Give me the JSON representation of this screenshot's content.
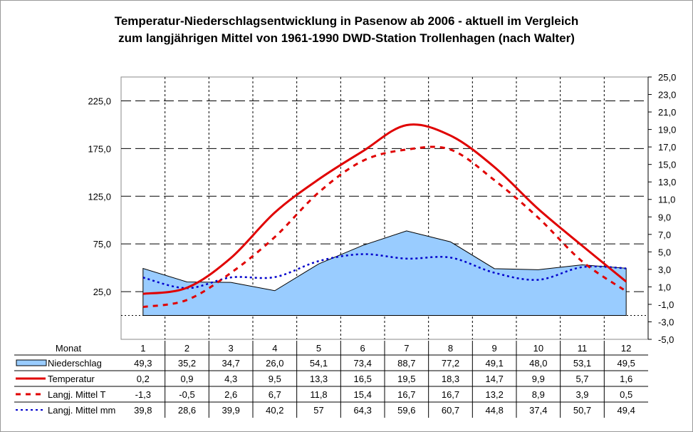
{
  "chart_data": {
    "type": "line",
    "title_line1": "Temperatur-Niederschlagsentwicklung in Pasenow ab 2006 - aktuell  im Vergleich",
    "title_line2": "zum langjährigen Mittel von 1961-1990 DWD-Station Trollenhagen (nach Walter)",
    "x_header": "Monat",
    "categories": [
      "1",
      "2",
      "3",
      "4",
      "5",
      "6",
      "7",
      "8",
      "9",
      "10",
      "11",
      "12"
    ],
    "y_left": {
      "range": [
        -25,
        250
      ],
      "ticks": [
        "25,0",
        "75,0",
        "125,0",
        "175,0",
        "225,0"
      ],
      "tick_values": [
        25,
        75,
        125,
        175,
        225
      ]
    },
    "y_right": {
      "range": [
        -5,
        25
      ],
      "ticks": [
        "25,0",
        "23,0",
        "21,0",
        "19,0",
        "17,0",
        "15,0",
        "13,0",
        "11,0",
        "9,0",
        "7,0",
        "5,0",
        "3,0",
        "1,0",
        "-1,0",
        "-3,0",
        "-5,0"
      ],
      "tick_values": [
        25,
        23,
        21,
        19,
        17,
        15,
        13,
        11,
        9,
        7,
        5,
        3,
        1,
        -1,
        -3,
        -5
      ]
    },
    "series": [
      {
        "name": "Niederschlag",
        "axis": "left",
        "style": "area",
        "color": "#99ccff",
        "values": [
          49.3,
          35.2,
          34.7,
          26.0,
          54.1,
          73.4,
          88.7,
          77.2,
          49.1,
          48.0,
          53.1,
          49.5
        ],
        "labels": [
          "49,3",
          "35,2",
          "34,7",
          "26,0",
          "54,1",
          "73,4",
          "88,7",
          "77,2",
          "49,1",
          "48,0",
          "53,1",
          "49,5"
        ]
      },
      {
        "name": "Temperatur",
        "axis": "right",
        "style": "solid",
        "color": "#e00000",
        "values": [
          0.2,
          0.9,
          4.3,
          9.5,
          13.3,
          16.5,
          19.5,
          18.3,
          14.7,
          9.9,
          5.7,
          1.6
        ],
        "labels": [
          "0,2",
          "0,9",
          "4,3",
          "9,5",
          "13,3",
          "16,5",
          "19,5",
          "18,3",
          "14,7",
          "9,9",
          "5,7",
          "1,6"
        ]
      },
      {
        "name": "Langj. Mittel T",
        "axis": "right",
        "style": "dashed",
        "color": "#e00000",
        "values": [
          -1.3,
          -0.5,
          2.6,
          6.7,
          11.8,
          15.4,
          16.7,
          16.7,
          13.2,
          8.9,
          3.9,
          0.5
        ],
        "labels": [
          "-1,3",
          "-0,5",
          "2,6",
          "6,7",
          "11,8",
          "15,4",
          "16,7",
          "16,7",
          "13,2",
          "8,9",
          "3,9",
          "0,5"
        ]
      },
      {
        "name": "Langj. Mittel mm",
        "axis": "left",
        "style": "dotted",
        "color": "#0000cc",
        "values": [
          39.8,
          28.6,
          39.9,
          40.2,
          57,
          64.3,
          59.6,
          60.7,
          44.8,
          37.4,
          50.7,
          49.4
        ],
        "labels": [
          "39,8",
          "28,6",
          "39,9",
          "40,2",
          "57",
          "64,3",
          "59,6",
          "60,7",
          "44,8",
          "37,4",
          "50,7",
          "49,4"
        ]
      }
    ],
    "legend_placement": "data-table-bottom",
    "grid": true
  }
}
